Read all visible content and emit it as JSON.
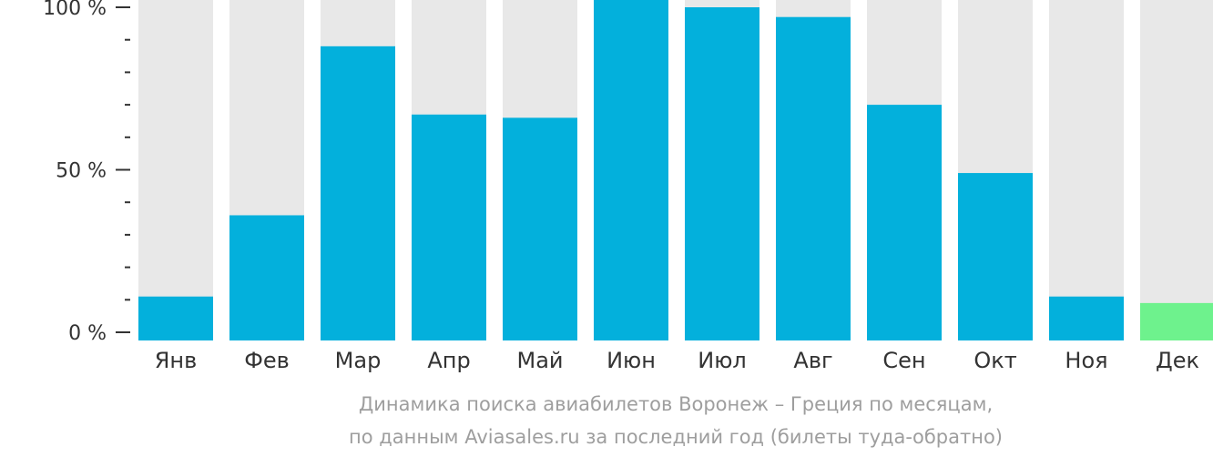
{
  "chart_data": {
    "type": "bar",
    "categories": [
      "Янв",
      "Фев",
      "Мар",
      "Апр",
      "Май",
      "Июн",
      "Июл",
      "Авг",
      "Сен",
      "Окт",
      "Ноя",
      "Дек"
    ],
    "values": [
      11,
      36,
      88,
      67,
      66,
      103,
      100,
      97,
      70,
      49,
      11,
      9
    ],
    "highlight_index": 11,
    "ylim": [
      0,
      100
    ],
    "yticks": [
      "0 %",
      "50 %",
      "100 %"
    ],
    "caption_line1": "Динамика поиска авиабилетов Воронеж – Греция по месяцам,",
    "caption_line2": "по данным Aviasales.ru за последний год (билеты туда-обратно)",
    "colors": {
      "bar": "#03b0dc",
      "highlight": "#6ef28d",
      "track": "#e8e8e8",
      "axis": "#333333",
      "caption": "#9e9e9e"
    }
  }
}
